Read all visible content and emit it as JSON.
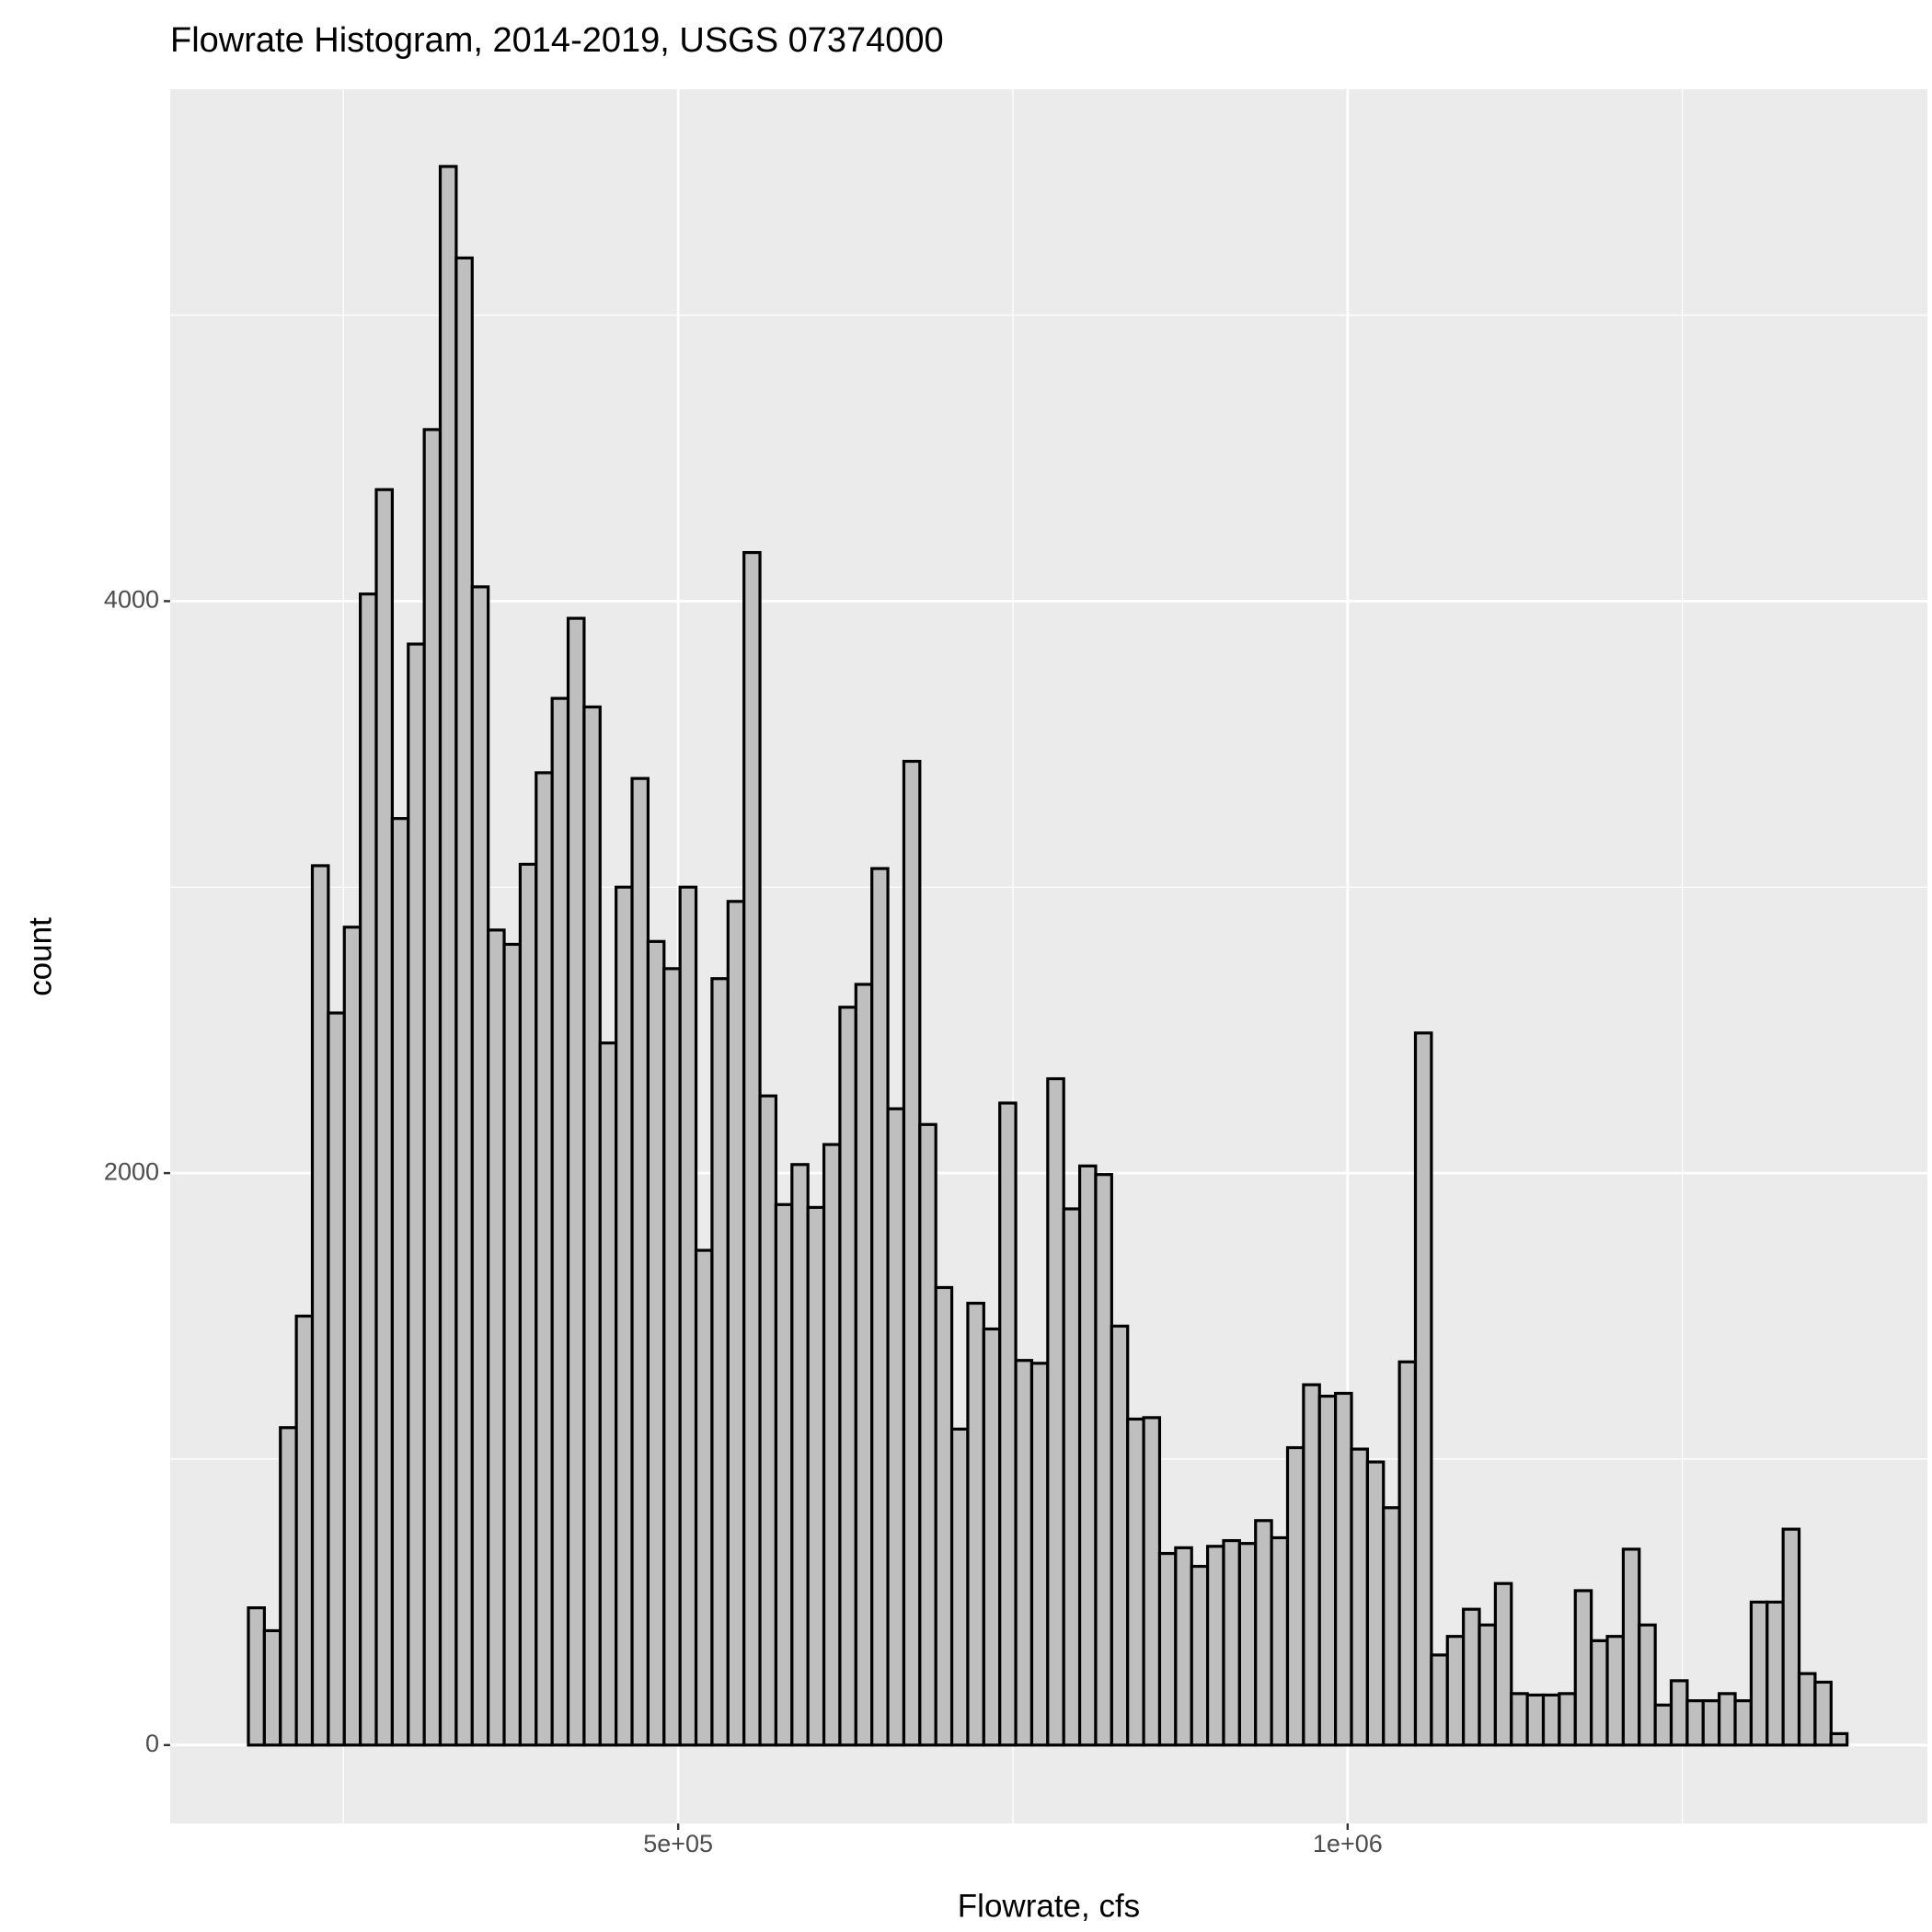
{
  "chart_data": {
    "type": "histogram",
    "title": "Flowrate Histogram, 2014-2019, USGS 07374000",
    "xlabel": "Flowrate, cfs",
    "ylabel": "count",
    "bins": [
      179000,
      190940,
      202880,
      214820,
      226760,
      238700,
      250640,
      262580,
      274520,
      286460,
      298400,
      310340,
      322280,
      334220,
      346160,
      358100,
      370040,
      381980,
      393920,
      405860,
      417800,
      429740,
      441680,
      453620,
      465560,
      477500,
      489440,
      501380,
      513320,
      525260,
      537200,
      549140,
      561080,
      573020,
      584960,
      596900,
      608840,
      620780,
      632720,
      644660,
      656600,
      668540,
      680480,
      692420,
      704360,
      716300,
      728240,
      740180,
      752120,
      764060,
      776000,
      787940,
      799880,
      811820,
      823760,
      835700,
      847640,
      859580,
      871520,
      883460,
      895400,
      907340,
      919280,
      931220,
      943160,
      955100,
      967040,
      978980,
      990920,
      1002860,
      1014800,
      1026740,
      1038680,
      1050620,
      1062560,
      1074500,
      1086440,
      1098380,
      1110320,
      1122260,
      1134200,
      1146140,
      1158080,
      1170020,
      1181960,
      1193900,
      1205840,
      1217780,
      1229720,
      1241660,
      1253600,
      1265540,
      1277480,
      1289420,
      1301360,
      1313300,
      1325240,
      1337180,
      1349120,
      1361060,
      1373000
    ],
    "counts": [
      480,
      400,
      1110,
      1500,
      3075,
      2560,
      2860,
      4025,
      4390,
      3240,
      3850,
      4600,
      5520,
      5200,
      4050,
      2850,
      2800,
      3080,
      3400,
      3660,
      3940,
      3630,
      2455,
      3000,
      3380,
      2810,
      2715,
      3000,
      1730,
      2680,
      2950,
      4170,
      2270,
      1890,
      2030,
      1880,
      2100,
      2580,
      2660,
      3065,
      2225,
      3440,
      2170,
      1600,
      1105,
      1545,
      1455,
      2245,
      1345,
      1335,
      2330,
      1875,
      2025,
      1995,
      1465,
      1140,
      1145,
      670,
      690,
      625,
      695,
      715,
      705,
      785,
      725,
      1040,
      1260,
      1220,
      1230,
      1035,
      990,
      830,
      1340,
      2490,
      315,
      380,
      475,
      420,
      565,
      180,
      175,
      175,
      180,
      540,
      365,
      380,
      685,
      420,
      140,
      225,
      155,
      155,
      180,
      155,
      500,
      500,
      755,
      250,
      220,
      40
    ],
    "color": "#bfbfbf",
    "edgecolor": "#000000",
    "xlim": [
      120600,
      1433000
    ],
    "ylim": [
      -274,
      5790
    ],
    "xticks": [
      {
        "value": 500000,
        "label": "5e+05"
      },
      {
        "value": 1000000,
        "label": "1e+06"
      }
    ],
    "yticks": [
      0,
      2000,
      4000
    ],
    "grid": true
  }
}
